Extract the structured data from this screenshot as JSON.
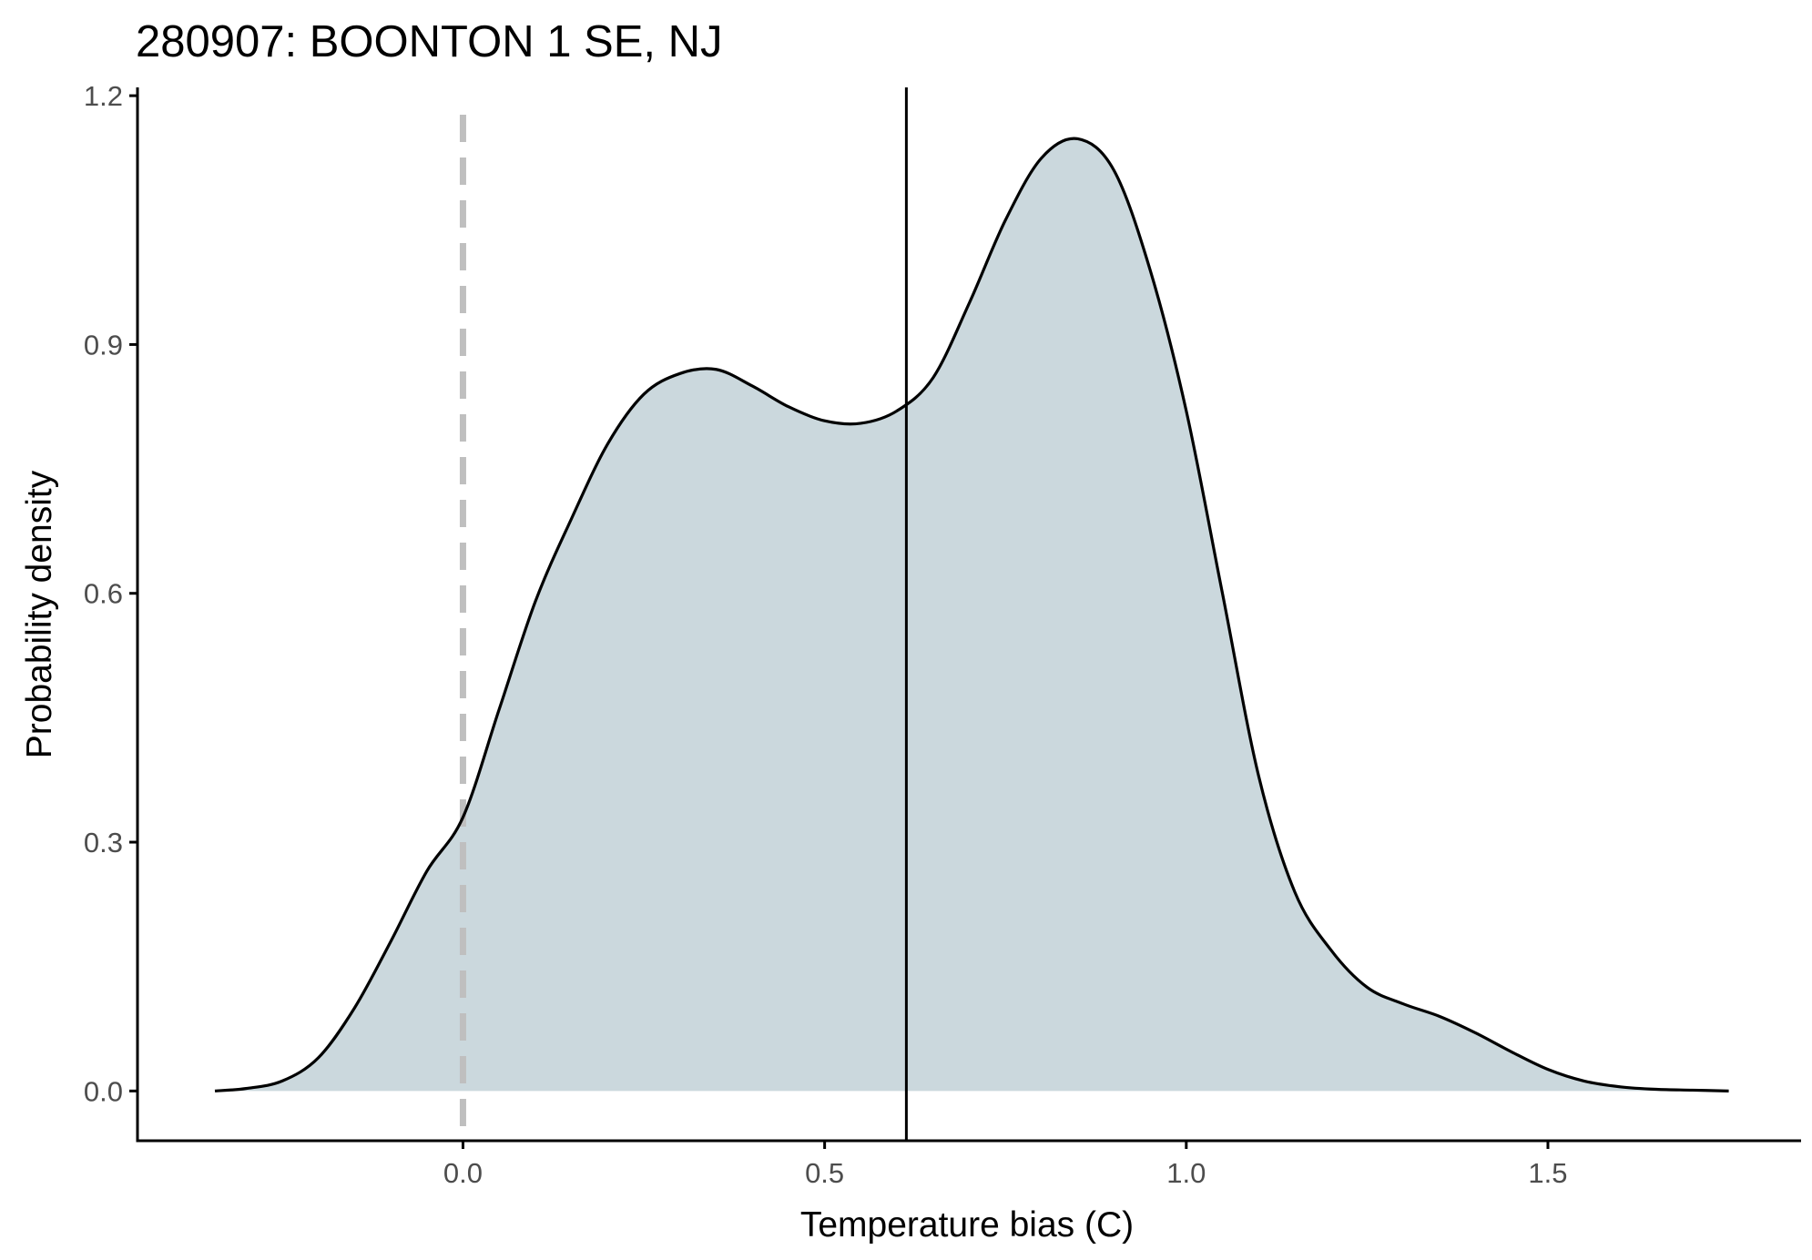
{
  "chart_data": {
    "type": "area",
    "title": "280907: BOONTON 1 SE, NJ",
    "xlabel": "Temperature bias (C)",
    "ylabel": "Probability density",
    "xlim": [
      -0.45,
      1.85
    ],
    "ylim": [
      -0.06,
      1.21
    ],
    "x_ticks": [
      0.0,
      0.5,
      1.0,
      1.5
    ],
    "x_tick_labels": [
      "0.0",
      "0.5",
      "1.0",
      "1.5"
    ],
    "y_ticks": [
      0.0,
      0.3,
      0.6,
      0.9,
      1.2
    ],
    "y_tick_labels": [
      "0.0",
      "0.3",
      "0.6",
      "0.9",
      "1.2"
    ],
    "grid": false,
    "legend": "none",
    "colors": {
      "fill": "#cbd8dd",
      "line": "#000000",
      "zero_line": "#bfbfbf",
      "vline": "#000000",
      "axis": "#000000",
      "tick_text": "#4d4d4d"
    },
    "reference_lines": [
      {
        "name": "zero",
        "x": 0.0,
        "style": "dashed"
      },
      {
        "name": "mean",
        "x": 0.613,
        "style": "solid"
      }
    ],
    "series": [
      {
        "x": [
          -0.343,
          -0.3,
          -0.25,
          -0.2,
          -0.15,
          -0.1,
          -0.05,
          0.0,
          0.05,
          0.1,
          0.15,
          0.2,
          0.25,
          0.3,
          0.35,
          0.4,
          0.45,
          0.5,
          0.55,
          0.6,
          0.65,
          0.7,
          0.75,
          0.8,
          0.85,
          0.9,
          0.95,
          1.0,
          1.05,
          1.1,
          1.15,
          1.2,
          1.25,
          1.3,
          1.35,
          1.4,
          1.45,
          1.5,
          1.55,
          1.6,
          1.65,
          1.7,
          1.75
        ],
        "y": [
          0.0,
          0.003,
          0.012,
          0.04,
          0.1,
          0.18,
          0.265,
          0.33,
          0.46,
          0.59,
          0.69,
          0.78,
          0.84,
          0.865,
          0.87,
          0.85,
          0.825,
          0.808,
          0.805,
          0.82,
          0.86,
          0.95,
          1.05,
          1.125,
          1.148,
          1.11,
          0.99,
          0.82,
          0.6,
          0.38,
          0.24,
          0.17,
          0.125,
          0.105,
          0.09,
          0.07,
          0.047,
          0.026,
          0.012,
          0.005,
          0.002,
          0.001,
          0.0
        ]
      }
    ]
  }
}
